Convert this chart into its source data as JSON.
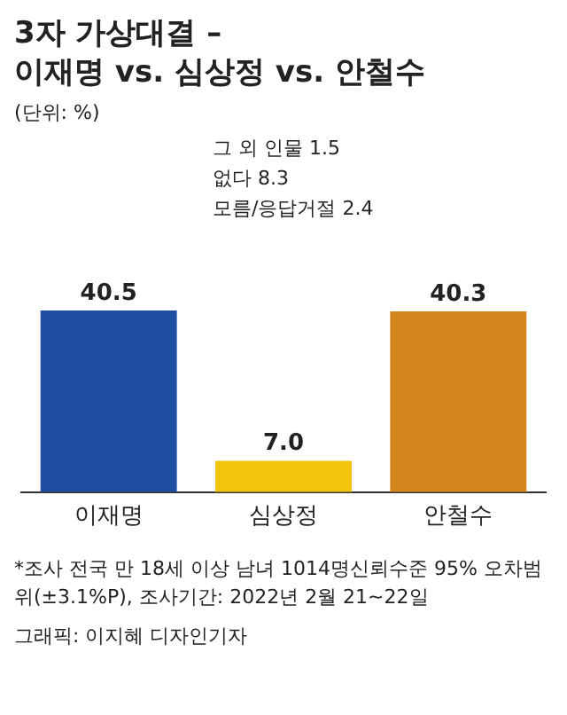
{
  "chart_data": {
    "type": "bar",
    "title": "3자 가상대결 –\n이재명 vs. 심상정 vs. 안철수",
    "subtitle": "(단위: %)",
    "categories": [
      "이재명",
      "심상정",
      "안철수"
    ],
    "values": [
      40.5,
      7.0,
      40.3
    ],
    "value_labels": [
      "40.5",
      "7.0",
      "40.3"
    ],
    "colors": [
      "#1f4fa3",
      "#f2c40c",
      "#d4861c"
    ],
    "grid": false,
    "legend": false,
    "annotations": [
      "그 외 인물 1.5",
      "없다 8.3",
      "모름/응답거절 2.4",
      "*조사 전국 만 18세 이상 남녀 1014명신뢰수준 95% 오차범위(±3.1%P), 조사기간: 2022년 2월 21~22일",
      "그래픽: 이지혜 디자인기자"
    ]
  }
}
